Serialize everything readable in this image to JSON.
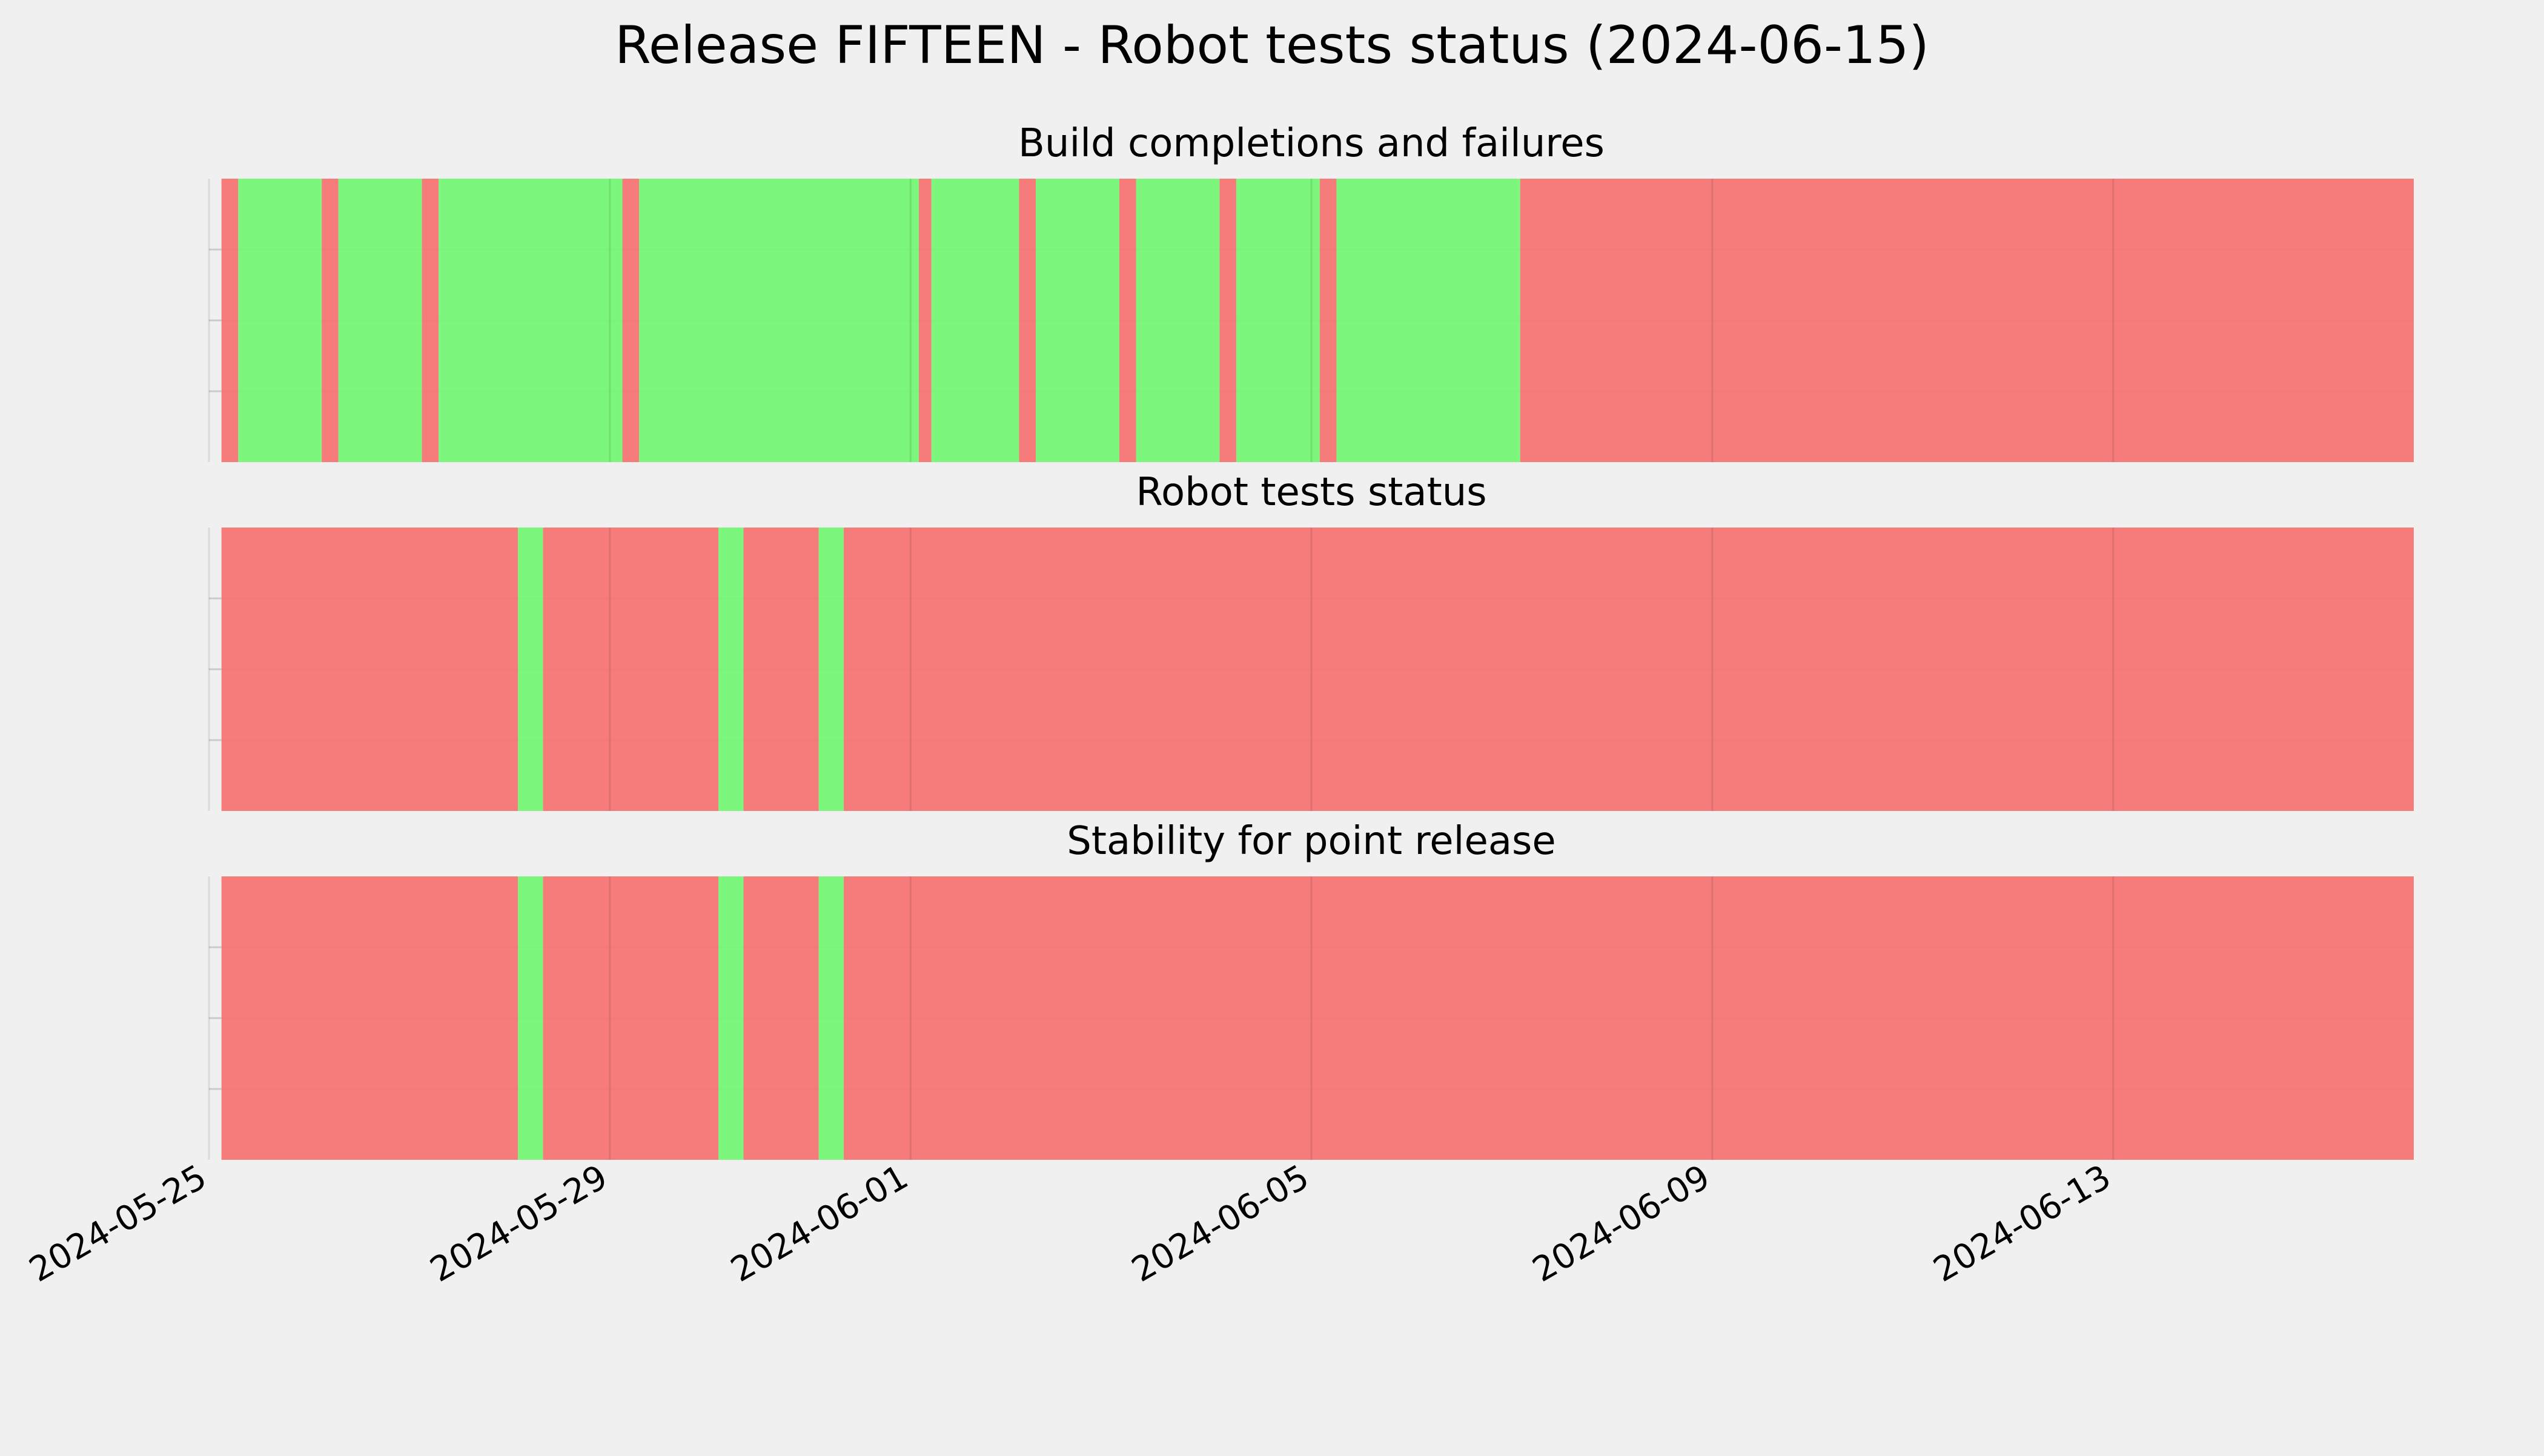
{
  "chart_data": {
    "type": "timeline",
    "title": "Release FIFTEEN - Robot tests status (2024-06-15)",
    "x_range": [
      "2024-05-25",
      "2024-06-15T23:59:00"
    ],
    "x_ticks": [
      "2024-05-25",
      "2024-05-29",
      "2024-06-01",
      "2024-06-05",
      "2024-06-09",
      "2024-06-13"
    ],
    "grid": true,
    "colors": {
      "ok": "#75f575",
      "fail": "#f57575",
      "background": "#f0f0f0",
      "grid": "#cbcbcb"
    },
    "panels": [
      {
        "title": "Build completions and failures",
        "segments": [
          {
            "start": "2024-05-25T03:00",
            "end": "2024-05-25T07:00",
            "status": "fail"
          },
          {
            "start": "2024-05-25T07:00",
            "end": "2024-05-26T03:00",
            "status": "ok"
          },
          {
            "start": "2024-05-26T03:00",
            "end": "2024-05-26T07:00",
            "status": "fail"
          },
          {
            "start": "2024-05-26T07:00",
            "end": "2024-05-27T03:00",
            "status": "ok"
          },
          {
            "start": "2024-05-27T03:00",
            "end": "2024-05-27T07:00",
            "status": "fail"
          },
          {
            "start": "2024-05-27T07:00",
            "end": "2024-05-29T03:00",
            "status": "ok"
          },
          {
            "start": "2024-05-29T03:00",
            "end": "2024-05-29T07:00",
            "status": "fail"
          },
          {
            "start": "2024-05-29T07:00",
            "end": "2024-06-01T02:00",
            "status": "ok"
          },
          {
            "start": "2024-06-01T02:00",
            "end": "2024-06-01T05:00",
            "status": "fail"
          },
          {
            "start": "2024-06-01T05:00",
            "end": "2024-06-02T02:00",
            "status": "ok"
          },
          {
            "start": "2024-06-02T02:00",
            "end": "2024-06-02T06:00",
            "status": "fail"
          },
          {
            "start": "2024-06-02T06:00",
            "end": "2024-06-03T02:00",
            "status": "ok"
          },
          {
            "start": "2024-06-03T02:00",
            "end": "2024-06-03T06:00",
            "status": "fail"
          },
          {
            "start": "2024-06-03T06:00",
            "end": "2024-06-04T02:00",
            "status": "ok"
          },
          {
            "start": "2024-06-04T02:00",
            "end": "2024-06-04T06:00",
            "status": "fail"
          },
          {
            "start": "2024-06-04T06:00",
            "end": "2024-06-05T02:00",
            "status": "ok"
          },
          {
            "start": "2024-06-05T02:00",
            "end": "2024-06-05T06:00",
            "status": "fail"
          },
          {
            "start": "2024-06-05T06:00",
            "end": "2024-06-07T02:00",
            "status": "ok"
          },
          {
            "start": "2024-06-07T02:00",
            "end": "2024-06-15T23:59",
            "status": "fail"
          }
        ]
      },
      {
        "title": "Robot tests status",
        "segments": [
          {
            "start": "2024-05-25T03:00",
            "end": "2024-05-28T02:00",
            "status": "fail"
          },
          {
            "start": "2024-05-28T02:00",
            "end": "2024-05-28T08:00",
            "status": "ok"
          },
          {
            "start": "2024-05-28T08:00",
            "end": "2024-05-30T02:00",
            "status": "fail"
          },
          {
            "start": "2024-05-30T02:00",
            "end": "2024-05-30T08:00",
            "status": "ok"
          },
          {
            "start": "2024-05-30T08:00",
            "end": "2024-05-31T02:00",
            "status": "fail"
          },
          {
            "start": "2024-05-31T02:00",
            "end": "2024-05-31T08:00",
            "status": "ok"
          },
          {
            "start": "2024-05-31T08:00",
            "end": "2024-06-15T23:59",
            "status": "fail"
          }
        ]
      },
      {
        "title": "Stability for point release",
        "segments": [
          {
            "start": "2024-05-25T03:00",
            "end": "2024-05-28T02:00",
            "status": "fail"
          },
          {
            "start": "2024-05-28T02:00",
            "end": "2024-05-28T08:00",
            "status": "ok"
          },
          {
            "start": "2024-05-28T08:00",
            "end": "2024-05-30T02:00",
            "status": "fail"
          },
          {
            "start": "2024-05-30T02:00",
            "end": "2024-05-30T08:00",
            "status": "ok"
          },
          {
            "start": "2024-05-30T08:00",
            "end": "2024-05-31T02:00",
            "status": "fail"
          },
          {
            "start": "2024-05-31T02:00",
            "end": "2024-05-31T08:00",
            "status": "ok"
          },
          {
            "start": "2024-05-31T08:00",
            "end": "2024-06-15T23:59",
            "status": "fail"
          }
        ]
      }
    ]
  }
}
